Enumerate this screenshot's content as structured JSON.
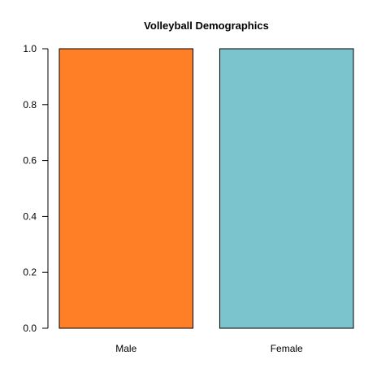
{
  "chart_data": {
    "type": "bar",
    "title": "Volleyball Demographics",
    "xlabel": "",
    "ylabel": "",
    "categories": [
      "Male",
      "Female"
    ],
    "values": [
      1.0,
      1.0
    ],
    "colors": [
      "#FF7F27",
      "#7BC4CE"
    ],
    "ylim": [
      0,
      1.0
    ],
    "yticks": [
      "0.0",
      "0.2",
      "0.4",
      "0.6",
      "0.8",
      "1.0"
    ],
    "grid": false,
    "legend": "none"
  }
}
